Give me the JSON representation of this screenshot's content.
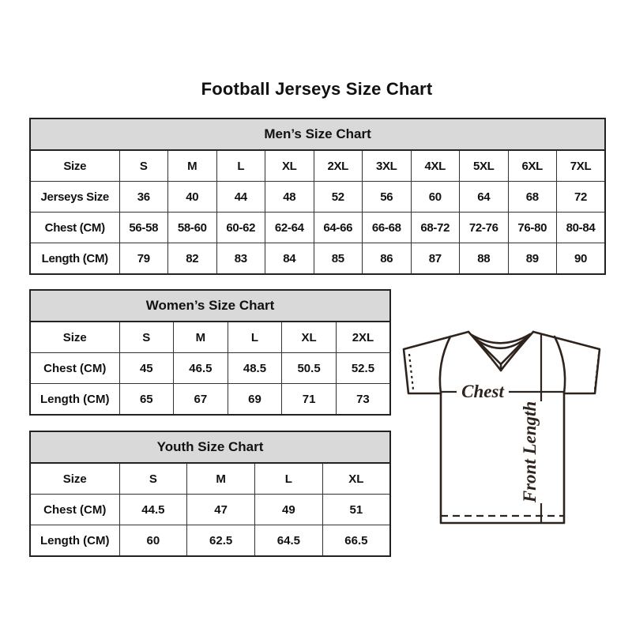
{
  "page": {
    "title": "Football Jerseys Size Chart"
  },
  "colors": {
    "background": "#ffffff",
    "table_header_fill": "#d9d9d9",
    "table_border": "#222222",
    "text": "#111111",
    "jersey_line": "#2e241d"
  },
  "tables": {
    "mens": {
      "title": "Men’s Size Chart",
      "rows": [
        [
          "Size",
          "S",
          "M",
          "L",
          "XL",
          "2XL",
          "3XL",
          "4XL",
          "5XL",
          "6XL",
          "7XL"
        ],
        [
          "Jerseys Size",
          "36",
          "40",
          "44",
          "48",
          "52",
          "56",
          "60",
          "64",
          "68",
          "72"
        ],
        [
          "Chest (CM)",
          "56-58",
          "58-60",
          "60-62",
          "62-64",
          "64-66",
          "66-68",
          "68-72",
          "72-76",
          "76-80",
          "80-84"
        ],
        [
          "Length (CM)",
          "79",
          "82",
          "83",
          "84",
          "85",
          "86",
          "87",
          "88",
          "89",
          "90"
        ]
      ]
    },
    "womens": {
      "title": "Women’s Size Chart",
      "rows": [
        [
          "Size",
          "S",
          "M",
          "L",
          "XL",
          "2XL"
        ],
        [
          "Chest (CM)",
          "45",
          "46.5",
          "48.5",
          "50.5",
          "52.5"
        ],
        [
          "Length (CM)",
          "65",
          "67",
          "69",
          "71",
          "73"
        ]
      ]
    },
    "youth": {
      "title": "Youth Size Chart",
      "rows": [
        [
          "Size",
          "S",
          "M",
          "L",
          "XL"
        ],
        [
          "Chest (CM)",
          "44.5",
          "47",
          "49",
          "51"
        ],
        [
          "Length (CM)",
          "60",
          "62.5",
          "64.5",
          "66.5"
        ]
      ]
    }
  },
  "diagram": {
    "chest_label": "Chest",
    "front_length_label": "Front Length"
  }
}
